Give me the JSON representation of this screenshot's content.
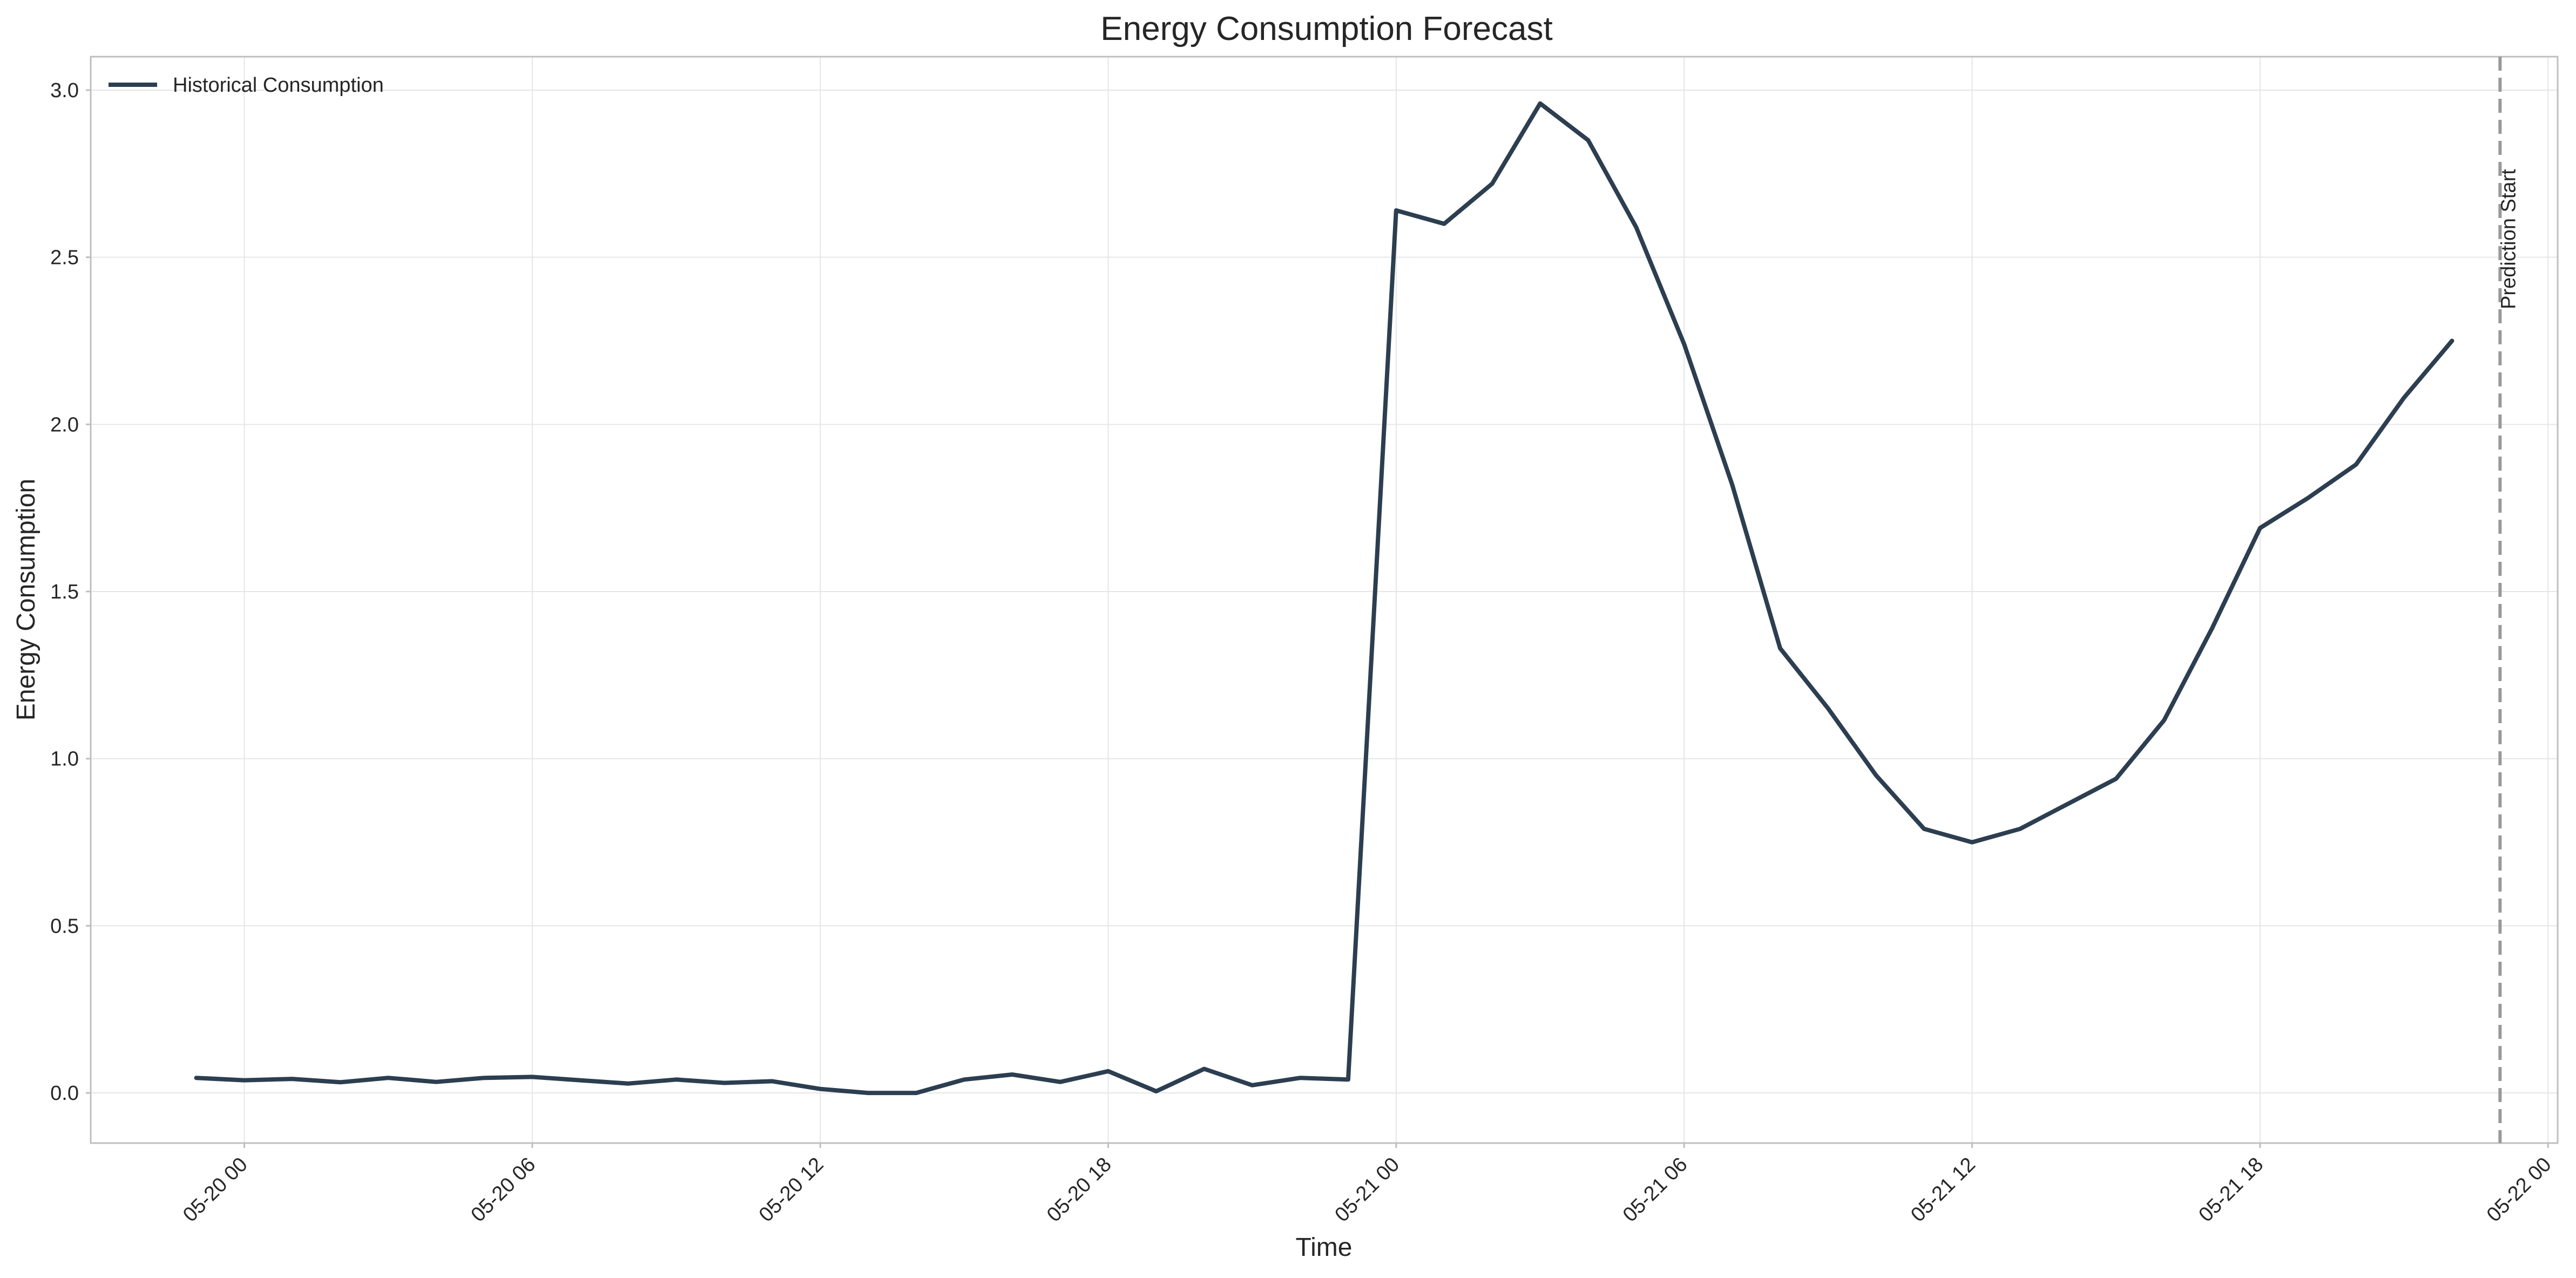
{
  "chart_data": {
    "type": "line",
    "title": "Energy Consumption Forecast",
    "xlabel": "Time",
    "ylabel": "Energy Consumption",
    "xlim": [
      "2024-05-19 20:48",
      "2024-05-22 00:12"
    ],
    "ylim": [
      -0.15,
      3.1
    ],
    "grid": true,
    "legend_position": "top-left",
    "x_ticks": [
      "2024-05-20 00:00",
      "2024-05-20 06:00",
      "2024-05-20 12:00",
      "2024-05-20 18:00",
      "2024-05-21 00:00",
      "2024-05-21 06:00",
      "2024-05-21 12:00",
      "2024-05-21 18:00",
      "2024-05-22 00:00"
    ],
    "x_tick_labels": [
      "05-20 00",
      "05-20 06",
      "05-20 12",
      "05-20 18",
      "05-21 00",
      "05-21 06",
      "05-21 12",
      "05-21 18",
      "05-22 00"
    ],
    "y_ticks": [
      0.0,
      0.5,
      1.0,
      1.5,
      2.0,
      2.5,
      3.0
    ],
    "y_tick_labels": [
      "0.0",
      "0.5",
      "1.0",
      "1.5",
      "2.0",
      "2.5",
      "3.0"
    ],
    "series": [
      {
        "name": "Historical Consumption",
        "color": "#2c3e50",
        "x": [
          "2024-05-19 23:00",
          "2024-05-20 00:00",
          "2024-05-20 01:00",
          "2024-05-20 02:00",
          "2024-05-20 03:00",
          "2024-05-20 04:00",
          "2024-05-20 05:00",
          "2024-05-20 06:00",
          "2024-05-20 07:00",
          "2024-05-20 08:00",
          "2024-05-20 09:00",
          "2024-05-20 10:00",
          "2024-05-20 11:00",
          "2024-05-20 12:00",
          "2024-05-20 13:00",
          "2024-05-20 14:00",
          "2024-05-20 15:00",
          "2024-05-20 16:00",
          "2024-05-20 17:00",
          "2024-05-20 18:00",
          "2024-05-20 19:00",
          "2024-05-20 20:00",
          "2024-05-20 21:00",
          "2024-05-20 22:00",
          "2024-05-20 23:00",
          "2024-05-21 00:00",
          "2024-05-21 01:00",
          "2024-05-21 02:00",
          "2024-05-21 03:00",
          "2024-05-21 04:00",
          "2024-05-21 05:00",
          "2024-05-21 06:00",
          "2024-05-21 07:00",
          "2024-05-21 08:00",
          "2024-05-21 09:00",
          "2024-05-21 10:00",
          "2024-05-21 11:00",
          "2024-05-21 12:00",
          "2024-05-21 13:00",
          "2024-05-21 14:00",
          "2024-05-21 15:00",
          "2024-05-21 16:00",
          "2024-05-21 17:00",
          "2024-05-21 18:00",
          "2024-05-21 19:00",
          "2024-05-21 20:00",
          "2024-05-21 21:00",
          "2024-05-21 22:00"
        ],
        "y": [
          0.045,
          0.038,
          0.042,
          0.032,
          0.045,
          0.033,
          0.045,
          0.048,
          0.038,
          0.028,
          0.04,
          0.03,
          0.035,
          0.012,
          0.0,
          0.0,
          0.04,
          0.055,
          0.033,
          0.065,
          0.005,
          0.072,
          0.023,
          0.045,
          0.04,
          2.64,
          2.6,
          2.72,
          2.96,
          2.85,
          2.59,
          2.24,
          1.82,
          1.33,
          1.15,
          0.95,
          0.79,
          0.75,
          0.79,
          0.865,
          0.94,
          1.115,
          1.39,
          1.69,
          1.78,
          1.88,
          2.08,
          2.25
        ]
      }
    ],
    "annotations": [
      {
        "type": "vline",
        "x": "2024-05-21 23:00",
        "label": "Prediction Start",
        "color": "#999999",
        "style": "dashed"
      }
    ]
  }
}
